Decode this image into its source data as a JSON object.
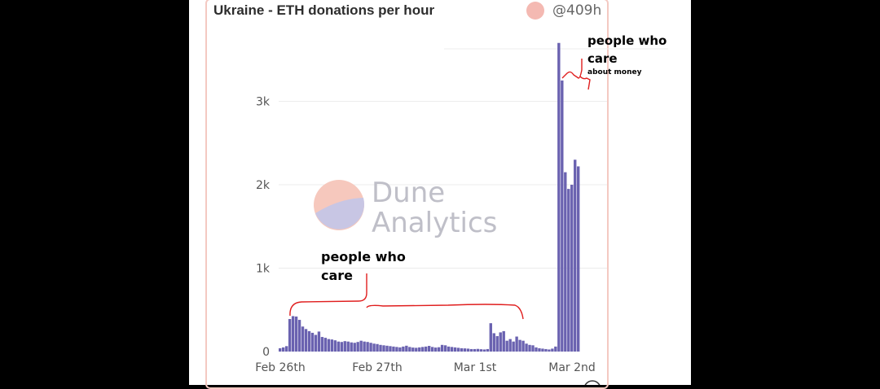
{
  "header": {
    "title": "Ukraine - ETH donations per hour",
    "handle": "@409h"
  },
  "watermark": {
    "line1": "Dune",
    "line2": "Analytics"
  },
  "annotations": {
    "left": {
      "line1": "people who",
      "line2": "care"
    },
    "right": {
      "line1": "people who",
      "line2": "care",
      "line3": "about money"
    }
  },
  "colors": {
    "bar": "#6a62b0",
    "annotation_stroke": "#e01e1e",
    "badge": "#f4b9b2"
  },
  "chart_data": {
    "type": "bar",
    "title": "Ukraine - ETH donations per hour",
    "xlabel": "",
    "ylabel": "",
    "ylim": [
      0,
      3700
    ],
    "yticks": [
      {
        "value": 0,
        "label": "0"
      },
      {
        "value": 1000,
        "label": "1k"
      },
      {
        "value": 2000,
        "label": "2k"
      },
      {
        "value": 3000,
        "label": "3k"
      }
    ],
    "xticks": [
      "Feb 26th",
      "Feb 27th",
      "Mar 1st",
      "Mar 2nd"
    ],
    "grid": true,
    "values": [
      40,
      50,
      65,
      390,
      425,
      420,
      380,
      300,
      270,
      245,
      225,
      200,
      240,
      175,
      165,
      150,
      145,
      135,
      120,
      115,
      125,
      120,
      110,
      105,
      115,
      130,
      120,
      115,
      105,
      95,
      90,
      80,
      75,
      70,
      65,
      60,
      55,
      50,
      60,
      70,
      55,
      48,
      45,
      50,
      55,
      60,
      68,
      55,
      48,
      52,
      80,
      75,
      60,
      55,
      50,
      45,
      40,
      38,
      35,
      30,
      30,
      32,
      28,
      25,
      30,
      340,
      220,
      185,
      230,
      245,
      130,
      150,
      120,
      180,
      140,
      130,
      95,
      80,
      75,
      50,
      40,
      35,
      30,
      25,
      35,
      60,
      3700,
      3250,
      2150,
      1950,
      2000,
      2300,
      2220
    ]
  }
}
